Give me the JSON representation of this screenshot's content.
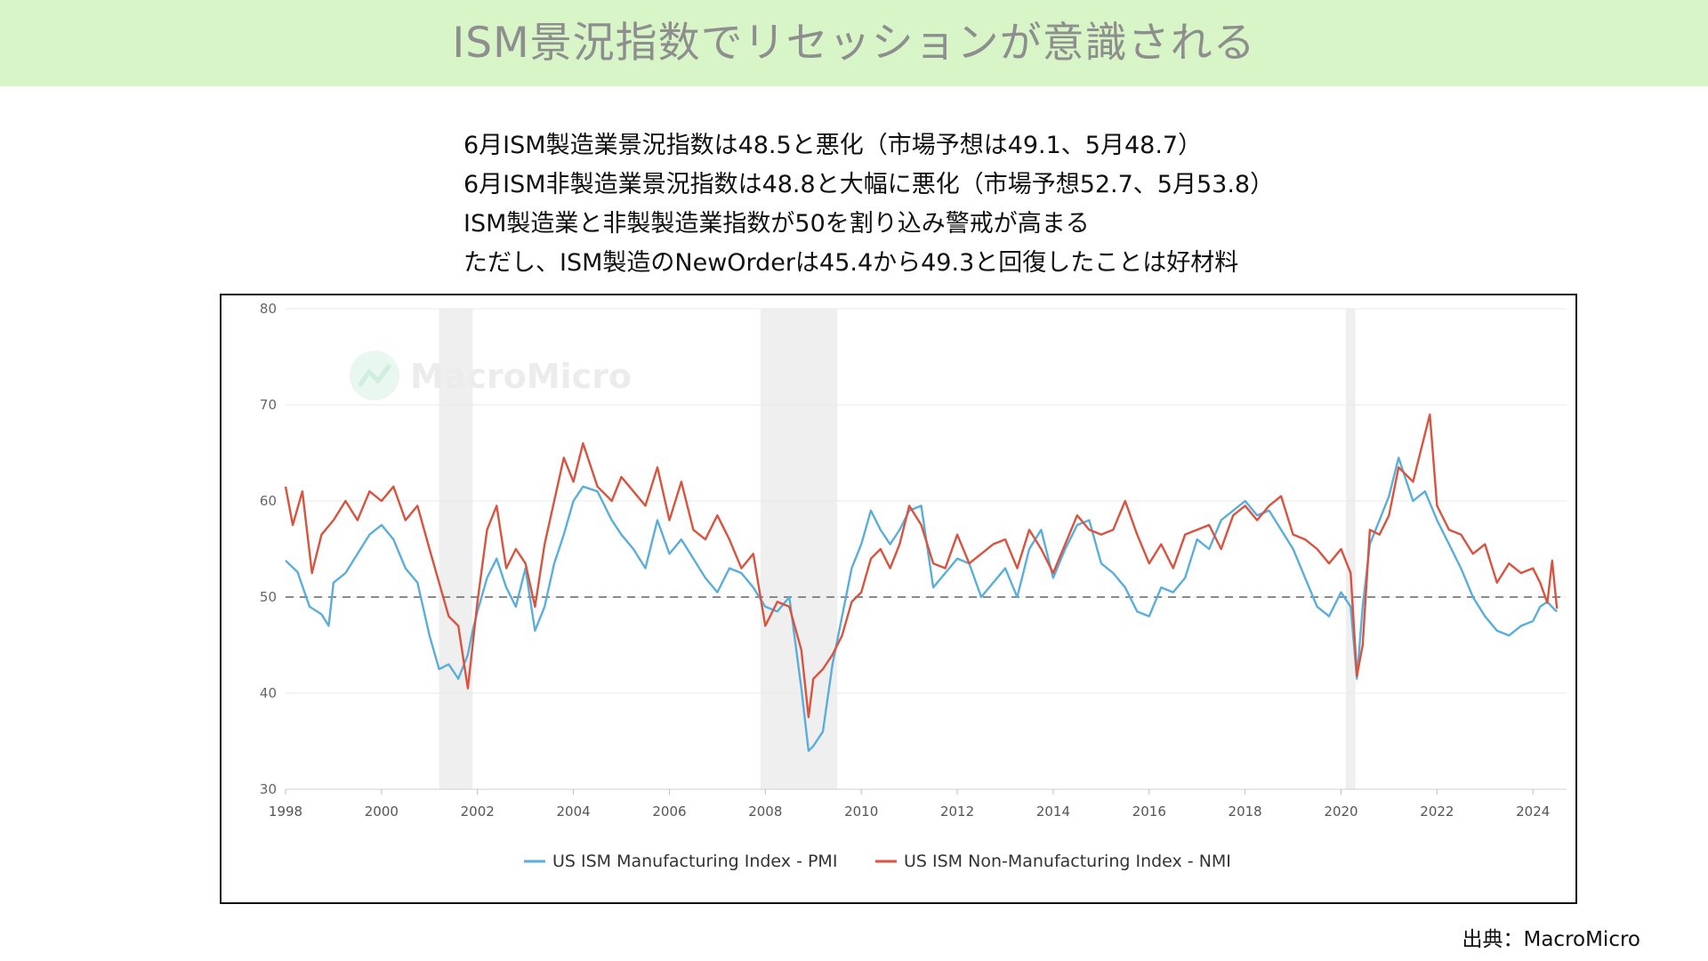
{
  "banner": {
    "title": "ISM景況指数でリセッションが意識される"
  },
  "notes": [
    "6月ISM製造業景況指数は48.5と悪化（市場予想は49.1、5月48.7）",
    "6月ISM非製造業景況指数は48.8と大幅に悪化（市場予想52.7、5月53.8）",
    "ISM製造業と非製製造業指数が50を割り込み警戒が高まる",
    "ただし、ISM製造のNewOrderは45.4から49.3と回復したことは好材料"
  ],
  "source": "出典：MacroMicro",
  "watermark": "MacroMicro",
  "colors": {
    "pmi": "#5aaedb",
    "nmi": "#d9533e",
    "recession": "#efefef",
    "grid": "#e8e8e8",
    "refline": "#8a8a8a",
    "banner": "#d7f5c6"
  },
  "chart_data": {
    "type": "line",
    "xlim": [
      1998,
      2024.7
    ],
    "ylim": [
      30,
      80
    ],
    "xticks": [
      "1998",
      "2000",
      "2002",
      "2004",
      "2006",
      "2008",
      "2010",
      "2012",
      "2014",
      "2016",
      "2018",
      "2020",
      "2022",
      "2024"
    ],
    "yticks": [
      "30",
      "40",
      "50",
      "60",
      "70",
      "80"
    ],
    "reference_line": 50,
    "recession_shading": [
      [
        2001.2,
        2001.9
      ],
      [
        2007.9,
        2009.5
      ],
      [
        2020.1,
        2020.3
      ]
    ],
    "legend_position": "bottom-center",
    "series": [
      {
        "name": "US ISM Manufacturing Index - PMI",
        "color": "#5aaedb",
        "points": [
          [
            1998.0,
            53.8
          ],
          [
            1998.25,
            52.6
          ],
          [
            1998.5,
            49.0
          ],
          [
            1998.75,
            48.2
          ],
          [
            1998.9,
            47.0
          ],
          [
            1999.0,
            51.5
          ],
          [
            1999.25,
            52.5
          ],
          [
            1999.5,
            54.5
          ],
          [
            1999.75,
            56.5
          ],
          [
            2000.0,
            57.5
          ],
          [
            2000.25,
            56.0
          ],
          [
            2000.5,
            53.0
          ],
          [
            2000.75,
            51.5
          ],
          [
            2001.0,
            46.0
          ],
          [
            2001.2,
            42.5
          ],
          [
            2001.4,
            43.0
          ],
          [
            2001.6,
            41.5
          ],
          [
            2001.8,
            44.0
          ],
          [
            2001.9,
            46.5
          ],
          [
            2002.0,
            48.5
          ],
          [
            2002.2,
            52.0
          ],
          [
            2002.4,
            54.0
          ],
          [
            2002.6,
            51.0
          ],
          [
            2002.8,
            49.0
          ],
          [
            2003.0,
            53.0
          ],
          [
            2003.2,
            46.5
          ],
          [
            2003.4,
            49.0
          ],
          [
            2003.6,
            53.5
          ],
          [
            2003.8,
            56.5
          ],
          [
            2004.0,
            60.0
          ],
          [
            2004.2,
            61.5
          ],
          [
            2004.5,
            61.0
          ],
          [
            2004.8,
            58.0
          ],
          [
            2005.0,
            56.5
          ],
          [
            2005.25,
            55.0
          ],
          [
            2005.5,
            53.0
          ],
          [
            2005.75,
            58.0
          ],
          [
            2006.0,
            54.5
          ],
          [
            2006.25,
            56.0
          ],
          [
            2006.5,
            54.0
          ],
          [
            2006.75,
            52.0
          ],
          [
            2007.0,
            50.5
          ],
          [
            2007.25,
            53.0
          ],
          [
            2007.5,
            52.5
          ],
          [
            2007.75,
            51.0
          ],
          [
            2008.0,
            49.0
          ],
          [
            2008.25,
            48.5
          ],
          [
            2008.5,
            50.0
          ],
          [
            2008.75,
            40.5
          ],
          [
            2008.9,
            34.0
          ],
          [
            2009.0,
            34.5
          ],
          [
            2009.2,
            36.0
          ],
          [
            2009.4,
            43.0
          ],
          [
            2009.6,
            48.0
          ],
          [
            2009.8,
            53.0
          ],
          [
            2010.0,
            55.5
          ],
          [
            2010.2,
            59.0
          ],
          [
            2010.4,
            57.0
          ],
          [
            2010.6,
            55.5
          ],
          [
            2010.8,
            57.0
          ],
          [
            2011.0,
            59.0
          ],
          [
            2011.25,
            59.5
          ],
          [
            2011.5,
            51.0
          ],
          [
            2011.75,
            52.5
          ],
          [
            2012.0,
            54.0
          ],
          [
            2012.25,
            53.5
          ],
          [
            2012.5,
            50.0
          ],
          [
            2012.75,
            51.5
          ],
          [
            2013.0,
            53.0
          ],
          [
            2013.25,
            50.0
          ],
          [
            2013.5,
            55.0
          ],
          [
            2013.75,
            57.0
          ],
          [
            2014.0,
            52.0
          ],
          [
            2014.25,
            55.0
          ],
          [
            2014.5,
            57.5
          ],
          [
            2014.75,
            58.0
          ],
          [
            2015.0,
            53.5
          ],
          [
            2015.25,
            52.5
          ],
          [
            2015.5,
            51.0
          ],
          [
            2015.75,
            48.5
          ],
          [
            2016.0,
            48.0
          ],
          [
            2016.25,
            51.0
          ],
          [
            2016.5,
            50.5
          ],
          [
            2016.75,
            52.0
          ],
          [
            2017.0,
            56.0
          ],
          [
            2017.25,
            55.0
          ],
          [
            2017.5,
            58.0
          ],
          [
            2017.75,
            59.0
          ],
          [
            2018.0,
            60.0
          ],
          [
            2018.25,
            58.5
          ],
          [
            2018.5,
            59.0
          ],
          [
            2018.75,
            57.0
          ],
          [
            2019.0,
            55.0
          ],
          [
            2019.25,
            52.0
          ],
          [
            2019.5,
            49.0
          ],
          [
            2019.75,
            48.0
          ],
          [
            2020.0,
            50.5
          ],
          [
            2020.2,
            49.0
          ],
          [
            2020.33,
            41.5
          ],
          [
            2020.45,
            49.0
          ],
          [
            2020.6,
            55.5
          ],
          [
            2020.8,
            58.0
          ],
          [
            2021.0,
            60.5
          ],
          [
            2021.2,
            64.5
          ],
          [
            2021.5,
            60.0
          ],
          [
            2021.75,
            61.0
          ],
          [
            2022.0,
            58.0
          ],
          [
            2022.25,
            55.5
          ],
          [
            2022.5,
            53.0
          ],
          [
            2022.75,
            50.0
          ],
          [
            2023.0,
            48.0
          ],
          [
            2023.25,
            46.5
          ],
          [
            2023.5,
            46.0
          ],
          [
            2023.75,
            47.0
          ],
          [
            2024.0,
            47.5
          ],
          [
            2024.15,
            49.0
          ],
          [
            2024.3,
            49.5
          ],
          [
            2024.45,
            48.7
          ],
          [
            2024.5,
            48.5
          ]
        ]
      },
      {
        "name": "US ISM Non-Manufacturing Index - NMI",
        "color": "#d9533e",
        "points": [
          [
            1998.0,
            61.5
          ],
          [
            1998.15,
            57.5
          ],
          [
            1998.35,
            61.0
          ],
          [
            1998.55,
            52.5
          ],
          [
            1998.75,
            56.5
          ],
          [
            1999.0,
            58.0
          ],
          [
            1999.25,
            60.0
          ],
          [
            1999.5,
            58.0
          ],
          [
            1999.75,
            61.0
          ],
          [
            2000.0,
            60.0
          ],
          [
            2000.25,
            61.5
          ],
          [
            2000.5,
            58.0
          ],
          [
            2000.75,
            59.5
          ],
          [
            2001.0,
            55.0
          ],
          [
            2001.2,
            51.5
          ],
          [
            2001.4,
            48.0
          ],
          [
            2001.6,
            47.0
          ],
          [
            2001.8,
            40.5
          ],
          [
            2001.9,
            45.0
          ],
          [
            2002.0,
            49.5
          ],
          [
            2002.2,
            57.0
          ],
          [
            2002.4,
            59.5
          ],
          [
            2002.6,
            53.0
          ],
          [
            2002.8,
            55.0
          ],
          [
            2003.0,
            53.5
          ],
          [
            2003.2,
            49.0
          ],
          [
            2003.4,
            55.5
          ],
          [
            2003.6,
            60.0
          ],
          [
            2003.8,
            64.5
          ],
          [
            2004.0,
            62.0
          ],
          [
            2004.2,
            66.0
          ],
          [
            2004.5,
            61.5
          ],
          [
            2004.8,
            60.0
          ],
          [
            2005.0,
            62.5
          ],
          [
            2005.25,
            61.0
          ],
          [
            2005.5,
            59.5
          ],
          [
            2005.75,
            63.5
          ],
          [
            2006.0,
            58.0
          ],
          [
            2006.25,
            62.0
          ],
          [
            2006.5,
            57.0
          ],
          [
            2006.75,
            56.0
          ],
          [
            2007.0,
            58.5
          ],
          [
            2007.25,
            56.0
          ],
          [
            2007.5,
            53.0
          ],
          [
            2007.75,
            54.5
          ],
          [
            2008.0,
            47.0
          ],
          [
            2008.25,
            49.5
          ],
          [
            2008.5,
            49.0
          ],
          [
            2008.75,
            44.5
          ],
          [
            2008.9,
            37.5
          ],
          [
            2009.0,
            41.5
          ],
          [
            2009.2,
            42.5
          ],
          [
            2009.4,
            44.0
          ],
          [
            2009.6,
            46.0
          ],
          [
            2009.8,
            49.5
          ],
          [
            2010.0,
            50.5
          ],
          [
            2010.2,
            54.0
          ],
          [
            2010.4,
            55.0
          ],
          [
            2010.6,
            53.0
          ],
          [
            2010.8,
            55.5
          ],
          [
            2011.0,
            59.5
          ],
          [
            2011.25,
            57.5
          ],
          [
            2011.5,
            53.5
          ],
          [
            2011.75,
            53.0
          ],
          [
            2012.0,
            56.5
          ],
          [
            2012.25,
            53.5
          ],
          [
            2012.5,
            54.5
          ],
          [
            2012.75,
            55.5
          ],
          [
            2013.0,
            56.0
          ],
          [
            2013.25,
            53.0
          ],
          [
            2013.5,
            57.0
          ],
          [
            2013.75,
            55.0
          ],
          [
            2014.0,
            52.5
          ],
          [
            2014.25,
            55.5
          ],
          [
            2014.5,
            58.5
          ],
          [
            2014.75,
            57.0
          ],
          [
            2015.0,
            56.5
          ],
          [
            2015.25,
            57.0
          ],
          [
            2015.5,
            60.0
          ],
          [
            2015.75,
            56.5
          ],
          [
            2016.0,
            53.5
          ],
          [
            2016.25,
            55.5
          ],
          [
            2016.5,
            53.0
          ],
          [
            2016.75,
            56.5
          ],
          [
            2017.0,
            57.0
          ],
          [
            2017.25,
            57.5
          ],
          [
            2017.5,
            55.0
          ],
          [
            2017.75,
            58.5
          ],
          [
            2018.0,
            59.5
          ],
          [
            2018.25,
            58.0
          ],
          [
            2018.5,
            59.5
          ],
          [
            2018.75,
            60.5
          ],
          [
            2019.0,
            56.5
          ],
          [
            2019.25,
            56.0
          ],
          [
            2019.5,
            55.0
          ],
          [
            2019.75,
            53.5
          ],
          [
            2020.0,
            55.0
          ],
          [
            2020.2,
            52.5
          ],
          [
            2020.33,
            41.8
          ],
          [
            2020.45,
            45.0
          ],
          [
            2020.6,
            57.0
          ],
          [
            2020.8,
            56.5
          ],
          [
            2021.0,
            58.5
          ],
          [
            2021.2,
            63.5
          ],
          [
            2021.5,
            62.0
          ],
          [
            2021.75,
            67.0
          ],
          [
            2021.85,
            69.0
          ],
          [
            2022.0,
            59.5
          ],
          [
            2022.25,
            57.0
          ],
          [
            2022.5,
            56.5
          ],
          [
            2022.75,
            54.5
          ],
          [
            2023.0,
            55.5
          ],
          [
            2023.25,
            51.5
          ],
          [
            2023.5,
            53.5
          ],
          [
            2023.75,
            52.5
          ],
          [
            2024.0,
            53.0
          ],
          [
            2024.15,
            51.5
          ],
          [
            2024.3,
            49.4
          ],
          [
            2024.4,
            53.8
          ],
          [
            2024.5,
            48.8
          ]
        ]
      }
    ]
  }
}
